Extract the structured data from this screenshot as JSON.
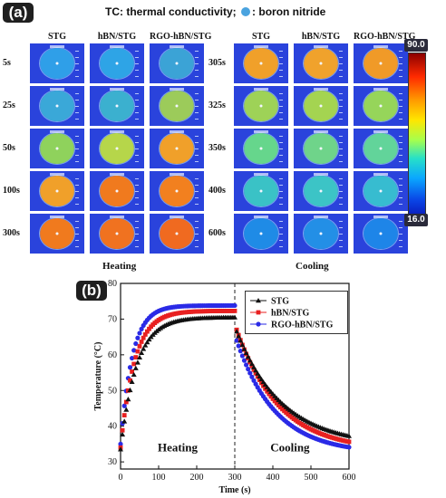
{
  "panel_a": {
    "badge": "(a)",
    "header": {
      "tc_text": "TC: thermal conductivity;",
      "bn_text": ": boron nitride"
    },
    "heating": {
      "columns": [
        "STG",
        "hBN/STG",
        "RGO-hBN/STG"
      ],
      "rows": [
        "5s",
        "25s",
        "50s",
        "100s",
        "300s"
      ],
      "label": "Heating"
    },
    "cooling": {
      "columns": [
        "STG",
        "hBN/STG",
        "RGO-hBN/STG"
      ],
      "rows": [
        "305s",
        "325s",
        "350s",
        "400s",
        "600s"
      ],
      "label": "Cooling"
    },
    "colorbar": {
      "max": "90.0",
      "min": "16.0"
    },
    "disk_colors": {
      "heating": [
        [
          "#2f9fe8",
          "#2ea4e6",
          "#3ba3d6"
        ],
        [
          "#3aa8d8",
          "#3bb0cf",
          "#9ccb5a"
        ],
        [
          "#8fd25c",
          "#b6d64a",
          "#f0a02a"
        ],
        [
          "#f0a02a",
          "#f07a1e",
          "#f2801f"
        ],
        [
          "#f07a1e",
          "#f07220",
          "#f06a20"
        ]
      ],
      "cooling": [
        [
          "#f0a02a",
          "#f0a22c",
          "#f09a28"
        ],
        [
          "#9ed257",
          "#a4d451",
          "#96d55a"
        ],
        [
          "#66d68c",
          "#6fd48a",
          "#62d49a"
        ],
        [
          "#3ac2c6",
          "#3cc4c6",
          "#37bcd0"
        ],
        [
          "#1f8be6",
          "#238fe6",
          "#1e85e8"
        ]
      ],
      "background": "#2a43dc"
    }
  },
  "panel_b": {
    "badge": "(b)",
    "phase_labels": {
      "heating": "Heating",
      "cooling": "Cooling"
    }
  },
  "chart_data": {
    "type": "scatter",
    "xlabel": "Time (s)",
    "ylabel": "Temperature (°C)",
    "xlim": [
      0,
      600
    ],
    "ylim": [
      28,
      80
    ],
    "xticks": [
      0,
      100,
      200,
      300,
      400,
      500,
      600
    ],
    "yticks": [
      30,
      40,
      50,
      60,
      70,
      80
    ],
    "divider_x": 300,
    "legend_position": "top-right",
    "series": [
      {
        "name": "STG",
        "color": "#111111",
        "marker": "triangle",
        "heating": {
          "start": 33.5,
          "plateau": 70.5,
          "tau": 42
        },
        "cooling": {
          "start": 66.5,
          "end": 34.5,
          "tau": 120
        }
      },
      {
        "name": "hBN/STG",
        "color": "#e82020",
        "marker": "square",
        "heating": {
          "start": 34.0,
          "plateau": 72.3,
          "tau": 37
        },
        "cooling": {
          "start": 67.0,
          "end": 33.2,
          "tau": 112
        }
      },
      {
        "name": "RGO-hBN/STG",
        "color": "#2a2ae6",
        "marker": "circle",
        "heating": {
          "start": 35.0,
          "plateau": 73.8,
          "tau": 31
        },
        "cooling": {
          "start": 64.0,
          "end": 32.3,
          "tau": 103
        }
      }
    ]
  }
}
